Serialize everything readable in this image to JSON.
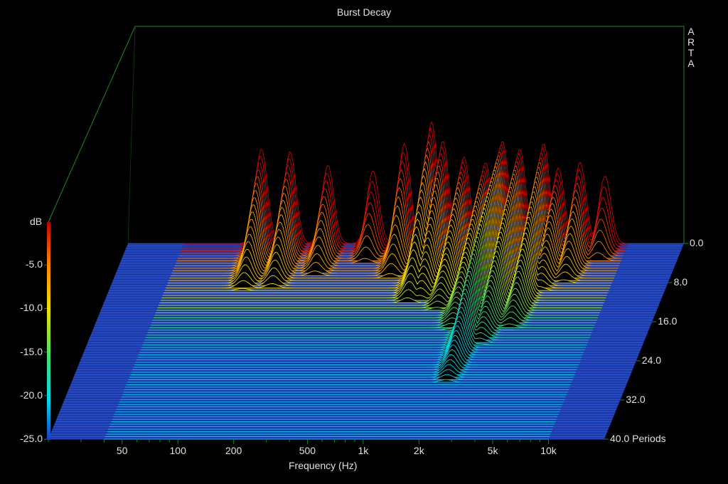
{
  "chart_data": {
    "type": "waterfall-3d",
    "title": "Burst Decay",
    "brand": "ARTA",
    "xlabel": "Frequency (Hz)",
    "x_scale": "log",
    "x_ticks": [
      "50",
      "100",
      "200",
      "500",
      "1k",
      "2k",
      "5k",
      "10k"
    ],
    "x_tick_values": [
      50,
      100,
      200,
      500,
      1000,
      2000,
      5000,
      10000
    ],
    "xlim": [
      20,
      20000
    ],
    "z_label": "dB",
    "z_ticks": [
      "-5.0",
      "-10.0",
      "-15.0",
      "-20.0",
      "-25.0"
    ],
    "zlim": [
      -25,
      0
    ],
    "colorbar": true,
    "y_label": "Periods",
    "y_ticks": [
      "0.0",
      "8.0",
      "16.0",
      "24.0",
      "32.0",
      "40.0"
    ],
    "ylim": [
      0,
      40
    ],
    "peaks": [
      {
        "f": 105,
        "db": -7.5,
        "decay": 14
      },
      {
        "f": 150,
        "db": -8.0,
        "decay": 14
      },
      {
        "f": 240,
        "db": -10.5,
        "decay": 12
      },
      {
        "f": 420,
        "db": -11.5,
        "decay": 8
      },
      {
        "f": 620,
        "db": -6.5,
        "decay": 10
      },
      {
        "f": 870,
        "db": -2.5,
        "decay": 14
      },
      {
        "f": 1000,
        "db": -6.0,
        "decay": 16
      },
      {
        "f": 1300,
        "db": -9.0,
        "decay": 22
      },
      {
        "f": 1700,
        "db": -10.0,
        "decay": 30
      },
      {
        "f": 2100,
        "db": -6.0,
        "decay": 38
      },
      {
        "f": 2600,
        "db": -7.5,
        "decay": 30
      },
      {
        "f": 3500,
        "db": -6.5,
        "decay": 24
      },
      {
        "f": 4200,
        "db": -11.0,
        "decay": 18
      },
      {
        "f": 5500,
        "db": -10.0,
        "decay": 14
      },
      {
        "f": 7500,
        "db": -12.5,
        "decay": 8
      }
    ],
    "colors": {
      "background": "#000000",
      "floor": "#2255d6",
      "box": "#1a8a1a",
      "scale": [
        "#1a3ad0",
        "#00d8e8",
        "#40e070",
        "#f0e000",
        "#ff8800",
        "#e00000",
        "#b00000"
      ]
    }
  }
}
